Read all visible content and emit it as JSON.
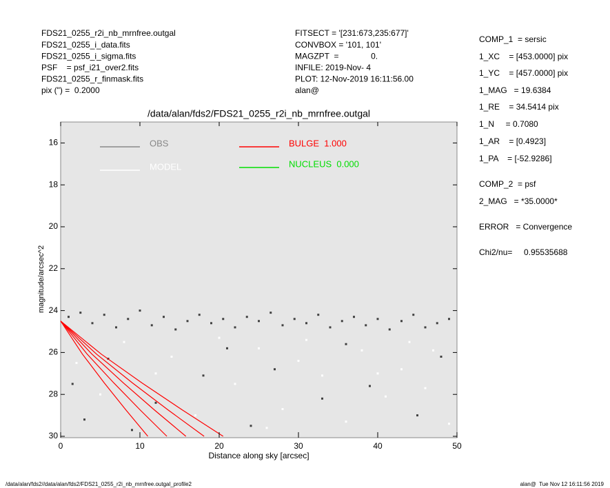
{
  "header": {
    "left": [
      "FDS21_0255_r2i_nb_mrnfree.outgal",
      "FDS21_0255_i_data.fits",
      "FDS21_0255_i_sigma.fits",
      "PSF    = psf_i21_over2.fits",
      "FDS21_0255_r_finmask.fits",
      "pix (\") =  0.2000"
    ],
    "middle": [
      "FITSECT = '[231:673,235:677]'",
      "CONVBOX = '101, 101'",
      "MAGZPT  =              0.",
      "INFILE: 2019-Nov- 4",
      "PLOT: 12-Nov-2019 16:11:56.00",
      "alan@"
    ],
    "right": [
      "COMP_1  = sersic",
      "1_XC    = [453.0000] pix",
      "1_YC    = [457.0000] pix",
      "1_MAG   = 19.6384",
      "1_RE    = 34.5414 pix",
      "1_N     = 0.7080",
      "1_AR    = [0.4923]",
      "1_PA    = [-52.9286]",
      "COMP_2  = psf",
      "2_MAG   = *35.0000*",
      "ERROR   = Convergence",
      "Chi2/nu=     0.95535688"
    ]
  },
  "footer": {
    "left": "/data/alan/fds2//data/alan/fds2/FDS21_0255_r2i_nb_mrnfree.outgal_profile2",
    "right": "alan@  Tue Nov 12 16:11:56 2019"
  },
  "chart_data": {
    "type": "scatter",
    "title": "/data/alan/fds2/FDS21_0255_r2i_nb_mrnfree.outgal",
    "x_label": "Distance along sky [arcsec]",
    "y_label": "magnitude/arcsec^2",
    "xlim": [
      0,
      50
    ],
    "xticks": [
      0,
      10,
      20,
      30,
      40,
      50
    ],
    "ylim": [
      30,
      15
    ],
    "yticks": [
      16,
      18,
      20,
      22,
      24,
      26,
      28,
      30
    ],
    "series": [
      {
        "name": "OBS",
        "color": "#404040",
        "legend_color": "#888888",
        "x": [
          1,
          2.5,
          4,
          5.5,
          7,
          8.5,
          10,
          11.5,
          13,
          14.5,
          16,
          17.5,
          19,
          20.5,
          22,
          23.5,
          25,
          26.5,
          28,
          29.5,
          31,
          32.5,
          34,
          35.5,
          37,
          38.5,
          40,
          41.5,
          43,
          44.5,
          46,
          47.5,
          49,
          1.5,
          3,
          6,
          12,
          18,
          24,
          27,
          33,
          39,
          45,
          48,
          21,
          36,
          9
        ],
        "values": [
          24.3,
          24.1,
          24.6,
          24.2,
          24.8,
          24.4,
          24.0,
          24.7,
          24.3,
          24.9,
          24.5,
          24.2,
          24.6,
          24.4,
          24.8,
          24.3,
          24.5,
          24.1,
          24.7,
          24.4,
          24.6,
          24.2,
          24.8,
          24.5,
          24.3,
          24.7,
          24.4,
          24.9,
          24.5,
          24.2,
          24.8,
          24.6,
          24.4,
          27.5,
          29.2,
          26.3,
          28.4,
          27.1,
          29.5,
          26.8,
          28.2,
          27.6,
          29.0,
          26.2,
          25.8,
          25.6,
          29.7
        ]
      },
      {
        "name": "MODEL",
        "color": "#ffffff",
        "x": [
          2,
          5,
          8,
          14,
          17,
          22,
          25,
          28,
          30,
          33,
          36,
          38,
          41,
          43,
          46,
          49,
          20,
          31,
          44,
          12,
          26,
          40,
          47
        ],
        "values": [
          26.5,
          28,
          25.5,
          26.2,
          29,
          27.5,
          25.8,
          28.7,
          26.4,
          27.1,
          29.3,
          25.9,
          28.1,
          26.8,
          27.7,
          29.4,
          25.3,
          25.4,
          25.5,
          27.0,
          29.6,
          27.0,
          25.9
        ]
      },
      {
        "name": "BULGE  1.000",
        "color": "#ff0000",
        "curves": [
          {
            "x": [
              0,
              2.75,
              5.5,
              8.25,
              11
            ],
            "values": [
              24.5,
              26.08,
              27.45,
              28.75,
              30.0
            ]
          },
          {
            "x": [
              0,
              3.35,
              6.7,
              10.05,
              13.4
            ],
            "values": [
              24.5,
              26.08,
              27.45,
              28.75,
              30.0
            ]
          },
          {
            "x": [
              0,
              3.95,
              7.9,
              11.85,
              15.8
            ],
            "values": [
              24.5,
              26.08,
              27.45,
              28.75,
              30.0
            ]
          },
          {
            "x": [
              0,
              4.53,
              9.05,
              13.58,
              18.1
            ],
            "values": [
              24.5,
              26.08,
              27.45,
              28.75,
              30.0
            ]
          },
          {
            "x": [
              0,
              5.13,
              10.25,
              15.38,
              20.5
            ],
            "values": [
              24.5,
              26.08,
              27.45,
              28.75,
              30.0
            ]
          }
        ]
      },
      {
        "name": "NUCLEUS  0.000",
        "color": "#00dd00"
      }
    ]
  }
}
